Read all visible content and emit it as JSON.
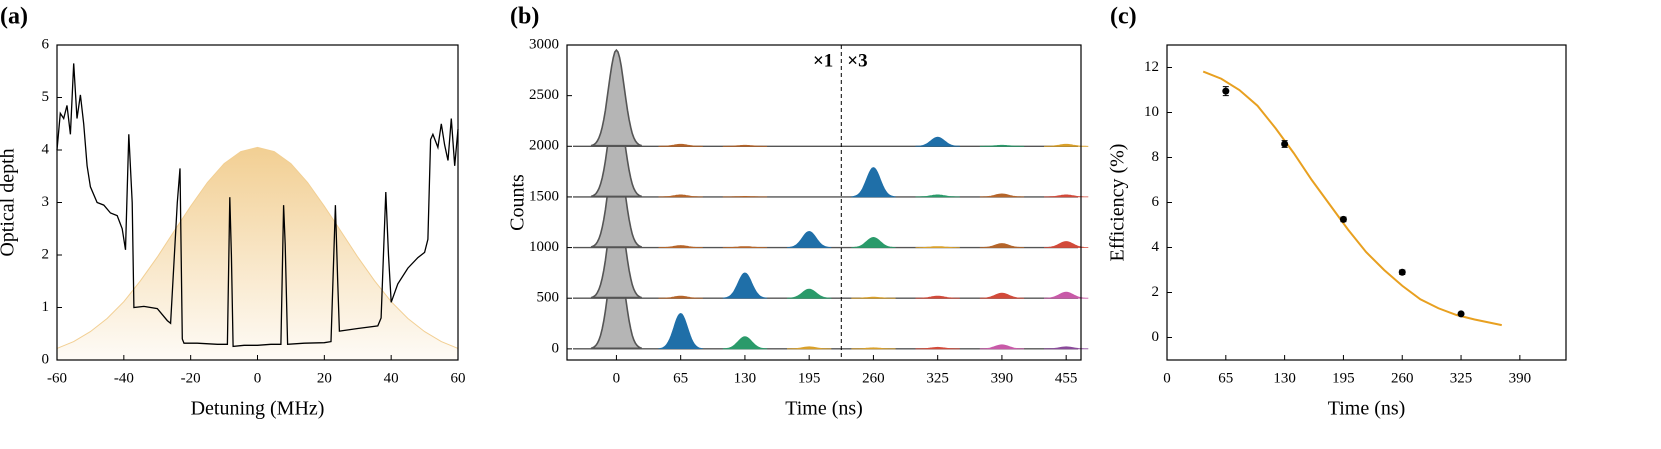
{
  "chart_data": [
    {
      "type": "line",
      "label": "(a)",
      "xlabel": "Detuning (MHz)",
      "ylabel": "Optical depth",
      "xlim": [
        -60,
        60
      ],
      "ylim": [
        0,
        6
      ],
      "xticks": [
        -60,
        -40,
        -20,
        0,
        20,
        40,
        60
      ],
      "yticks": [
        0,
        1,
        2,
        3,
        4,
        5,
        6
      ],
      "series": [
        {
          "style": "area",
          "color": "#f2cf93",
          "x": [
            -60,
            -55,
            -50,
            -45,
            -40,
            -35,
            -30,
            -25,
            -20,
            -15,
            -10,
            -5,
            0,
            5,
            10,
            15,
            20,
            25,
            30,
            35,
            40,
            45,
            50,
            55,
            60
          ],
          "values": [
            0.22,
            0.35,
            0.54,
            0.79,
            1.11,
            1.51,
            1.96,
            2.45,
            2.93,
            3.38,
            3.74,
            3.97,
            4.05,
            3.97,
            3.74,
            3.38,
            2.93,
            2.45,
            1.96,
            1.51,
            1.11,
            0.79,
            0.54,
            0.35,
            0.22
          ]
        },
        {
          "style": "line",
          "color": "#000000",
          "x": [
            -60,
            -59,
            -58,
            -57,
            -56,
            -55,
            -54,
            -53,
            -52,
            -51,
            -50,
            -48,
            -46,
            -44,
            -42,
            -40.5,
            -39.5,
            -38.5,
            -37.5,
            -37,
            -34,
            -30,
            -27,
            -26,
            -24,
            -23.2,
            -22.5,
            -22,
            -18,
            -12,
            -9,
            -8.3,
            -7.8,
            -7.3,
            -4,
            0,
            4,
            7,
            7.8,
            8.3,
            9,
            14,
            20,
            22,
            23.3,
            24,
            24.5,
            30,
            36,
            37,
            38.4,
            39.2,
            40,
            42,
            45,
            48,
            50,
            51,
            51.8,
            52.5,
            54,
            55,
            56,
            57,
            58,
            59,
            60
          ],
          "values": [
            4.0,
            4.7,
            4.6,
            4.85,
            4.3,
            5.65,
            4.6,
            5.05,
            4.5,
            3.7,
            3.3,
            3.0,
            2.95,
            2.8,
            2.75,
            2.5,
            2.1,
            4.3,
            3.0,
            1.0,
            1.02,
            0.98,
            0.75,
            0.7,
            3.0,
            3.65,
            0.4,
            0.32,
            0.32,
            0.3,
            0.3,
            3.1,
            2.0,
            0.26,
            0.28,
            0.28,
            0.3,
            0.3,
            2.95,
            2.2,
            0.3,
            0.32,
            0.33,
            0.35,
            2.95,
            1.5,
            0.55,
            0.6,
            0.65,
            0.8,
            3.2,
            2.0,
            1.1,
            1.45,
            1.75,
            1.95,
            2.05,
            2.3,
            4.2,
            4.3,
            4.05,
            4.5,
            4.1,
            3.8,
            4.6,
            3.7,
            4.4
          ]
        }
      ]
    },
    {
      "type": "ridgeline",
      "label": "(b)",
      "xlabel": "Time (ns)",
      "ylabel": "Counts",
      "xlim": [
        -50,
        470
      ],
      "ylim": [
        -110,
        3000
      ],
      "xticks": [
        0,
        65,
        130,
        195,
        260,
        325,
        390,
        455
      ],
      "yticks": [
        0,
        500,
        1000,
        1500,
        2000,
        2500,
        3000
      ],
      "divider_x": 227.5,
      "annotations": [
        "×1",
        "×3"
      ],
      "traces": [
        {
          "baseline": 0,
          "x": [
            0,
            65,
            130,
            195,
            260,
            325,
            390,
            455
          ],
          "values": [
            1000,
            350,
            120,
            20,
            10,
            15,
            40,
            20
          ],
          "colors": [
            "#b5b5b5",
            "#1f6fa8",
            "#2a9a6a",
            "#d9a02a",
            "#d9a02a",
            "#d24a3a",
            "#c85aa8",
            "#8a4a9a"
          ]
        },
        {
          "baseline": 500,
          "x": [
            0,
            65,
            130,
            195,
            260,
            325,
            390,
            455
          ],
          "values": [
            1500,
            520,
            750,
            590,
            510,
            520,
            550,
            560
          ],
          "colors": [
            "#b5b5b5",
            "#b5652a",
            "#1f6fa8",
            "#2a9a6a",
            "#d9a02a",
            "#d24a3a",
            "#d24a3a",
            "#c85aa8"
          ]
        },
        {
          "baseline": 1000,
          "x": [
            0,
            65,
            130,
            195,
            260,
            325,
            390,
            455
          ],
          "values": [
            2000,
            1020,
            1010,
            1160,
            1100,
            1010,
            1040,
            1060
          ],
          "colors": [
            "#b5b5b5",
            "#b5652a",
            "#b5652a",
            "#1f6fa8",
            "#2a9a6a",
            "#d9a02a",
            "#b5652a",
            "#d24a3a"
          ]
        },
        {
          "baseline": 1500,
          "x": [
            0,
            65,
            130,
            260,
            325,
            390,
            455
          ],
          "values": [
            2450,
            1520,
            1505,
            1790,
            1520,
            1530,
            1520
          ],
          "colors": [
            "#b5b5b5",
            "#b5652a",
            "#b5652a",
            "#1f6fa8",
            "#2a9a6a",
            "#b5652a",
            "#d24a3a"
          ]
        },
        {
          "baseline": 2000,
          "x": [
            0,
            65,
            130,
            325,
            390,
            455
          ],
          "values": [
            2950,
            2020,
            2010,
            2090,
            2010,
            2020
          ],
          "colors": [
            "#b5b5b5",
            "#b5652a",
            "#b5652a",
            "#1f6fa8",
            "#2a9a6a",
            "#d9a02a"
          ]
        }
      ]
    },
    {
      "type": "scatter",
      "label": "(c)",
      "xlabel": "Time (ns)",
      "ylabel": "Efficiency (%)",
      "xlim": [
        0,
        441
      ],
      "ylim": [
        -1,
        13
      ],
      "xticks": [
        0,
        65,
        130,
        195,
        260,
        325,
        390
      ],
      "yticks": [
        0,
        2,
        4,
        6,
        8,
        10,
        12
      ],
      "series": [
        {
          "style": "line",
          "color": "#e8a020",
          "x": [
            40,
            60,
            80,
            100,
            120,
            140,
            160,
            180,
            200,
            220,
            240,
            260,
            280,
            300,
            320,
            340,
            370
          ],
          "values": [
            11.82,
            11.5,
            11.0,
            10.3,
            9.3,
            8.2,
            7.0,
            5.9,
            4.8,
            3.8,
            3.0,
            2.3,
            1.7,
            1.3,
            1.0,
            0.8,
            0.55
          ]
        },
        {
          "style": "points",
          "color": "#000000",
          "x": [
            65,
            130,
            195,
            260,
            325
          ],
          "values": [
            10.95,
            8.6,
            5.25,
            2.9,
            1.05
          ],
          "errors": [
            0.2,
            0.15,
            0.1,
            0.1,
            0.05
          ]
        }
      ]
    }
  ]
}
